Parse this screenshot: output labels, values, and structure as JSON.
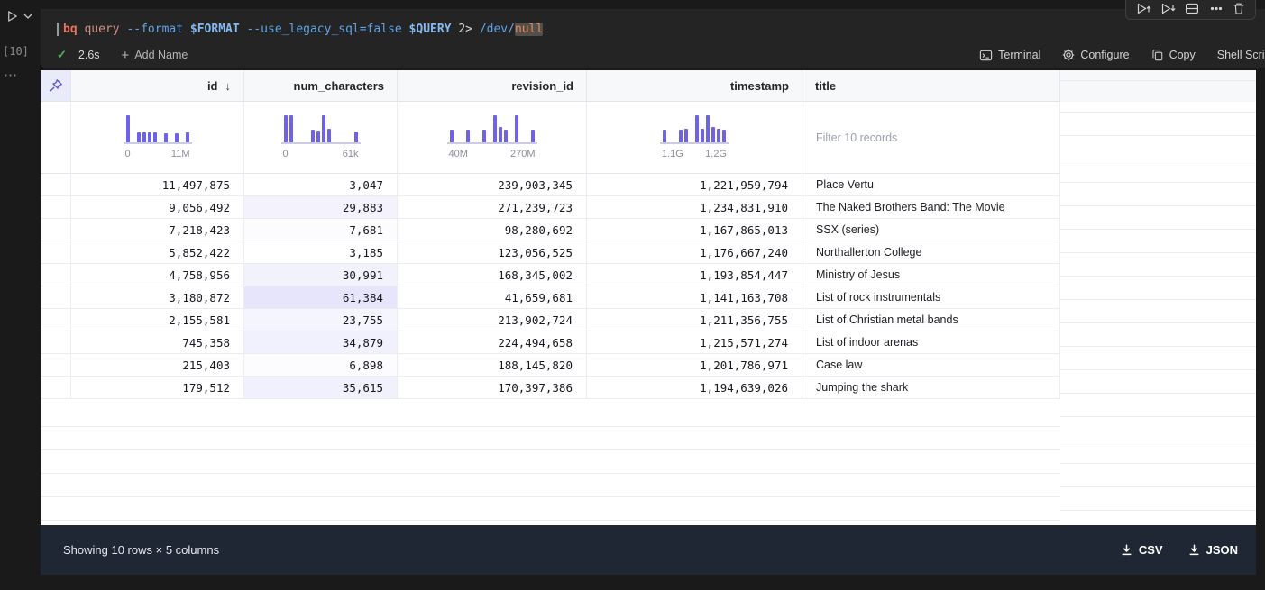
{
  "colors": {
    "accent": "#6e63e8",
    "tint_rgb": "108,99,232",
    "footer_bg": "#202734",
    "pin_bg": "#e9ebfb"
  },
  "icons": {
    "sort_desc": "↓",
    "more": "⋯",
    "check": "✓",
    "plus": "+"
  },
  "gutter": {
    "execution_count": "[10]"
  },
  "code": {
    "tokens": [
      {
        "text": "bq ",
        "style": "cmd"
      },
      {
        "text": "query ",
        "style": "arg"
      },
      {
        "text": "--format ",
        "style": "flag"
      },
      {
        "text": "$FORMAT ",
        "style": "var"
      },
      {
        "text": "--use_legacy_sql=false ",
        "style": "flag"
      },
      {
        "text": "$QUERY ",
        "style": "var"
      },
      {
        "text": "2> ",
        "style": "plain"
      },
      {
        "text": "/dev/",
        "style": "flag"
      },
      {
        "text": "null",
        "style": "highlight"
      }
    ]
  },
  "cell": {
    "duration": "2.6s",
    "add_name_label": "Add Name",
    "toolbar": [
      {
        "icon": "terminal",
        "label": "Terminal"
      },
      {
        "icon": "gear",
        "label": "Configure"
      },
      {
        "icon": "copy",
        "label": "Copy"
      },
      {
        "icon": null,
        "label": "Shell Script"
      }
    ],
    "float_toolbar_icons": [
      "run-above",
      "run-below",
      "split-cell",
      "more",
      "delete"
    ]
  },
  "table": {
    "columns": [
      {
        "key": "id",
        "label": "id",
        "align": "right",
        "sort": "desc",
        "hist": {
          "bins": [
            1,
            0,
            0.38,
            0.38,
            0.38,
            0.38,
            0,
            0.33,
            0,
            0.33,
            0,
            0.35
          ],
          "min": "0",
          "max": "11M"
        }
      },
      {
        "key": "num_characters",
        "label": "num_characters",
        "align": "right",
        "max_value": 61384,
        "hist": {
          "bins": [
            1,
            1,
            0,
            0,
            0,
            0.45,
            0.42,
            1,
            0.5,
            0,
            0,
            0,
            0,
            0.4
          ],
          "min": "0",
          "max": "61k"
        }
      },
      {
        "key": "revision_id",
        "label": "revision_id",
        "align": "right",
        "hist": {
          "bins": [
            0.45,
            0,
            0,
            0.45,
            0,
            0,
            0.45,
            0,
            1,
            0.55,
            0.45,
            0,
            1,
            0,
            0,
            0.45
          ],
          "min": "40M",
          "max": "270M"
        }
      },
      {
        "key": "timestamp",
        "label": "timestamp",
        "align": "right",
        "hist": {
          "bins": [
            0.45,
            0,
            0,
            0.45,
            0.5,
            0,
            1,
            0.5,
            1,
            0.55,
            0.5,
            0.45
          ],
          "min": "1.1G",
          "max": "1.2G"
        }
      },
      {
        "key": "title",
        "label": "title",
        "align": "left",
        "filter_placeholder": "Filter 10 records"
      }
    ],
    "rows": [
      {
        "id": "11,497,875",
        "num_characters": "3,047",
        "revision_id": "239,903,345",
        "timestamp": "1,221,959,794",
        "title": "Place Vertu"
      },
      {
        "id": "9,056,492",
        "num_characters": "29,883",
        "revision_id": "271,239,723",
        "timestamp": "1,234,831,910",
        "title": "The Naked Brothers Band: The Movie"
      },
      {
        "id": "7,218,423",
        "num_characters": "7,681",
        "revision_id": "98,280,692",
        "timestamp": "1,167,865,013",
        "title": "SSX (series)"
      },
      {
        "id": "5,852,422",
        "num_characters": "3,185",
        "revision_id": "123,056,525",
        "timestamp": "1,176,667,240",
        "title": "Northallerton College"
      },
      {
        "id": "4,758,956",
        "num_characters": "30,991",
        "revision_id": "168,345,002",
        "timestamp": "1,193,854,447",
        "title": "Ministry of Jesus"
      },
      {
        "id": "3,180,872",
        "num_characters": "61,384",
        "revision_id": "41,659,681",
        "timestamp": "1,141,163,708",
        "title": "List of rock instrumentals"
      },
      {
        "id": "2,155,581",
        "num_characters": "23,755",
        "revision_id": "213,902,724",
        "timestamp": "1,211,356,755",
        "title": "List of Christian metal bands"
      },
      {
        "id": "745,358",
        "num_characters": "34,879",
        "revision_id": "224,494,658",
        "timestamp": "1,215,571,274",
        "title": "List of indoor arenas"
      },
      {
        "id": "215,403",
        "num_characters": "6,898",
        "revision_id": "188,145,820",
        "timestamp": "1,201,786,971",
        "title": "Case law"
      },
      {
        "id": "179,512",
        "num_characters": "35,615",
        "revision_id": "170,397,386",
        "timestamp": "1,194,639,026",
        "title": "Jumping the shark"
      }
    ]
  },
  "footer": {
    "summary": "Showing 10 rows × 5 columns",
    "downloads": [
      "CSV",
      "JSON"
    ]
  }
}
